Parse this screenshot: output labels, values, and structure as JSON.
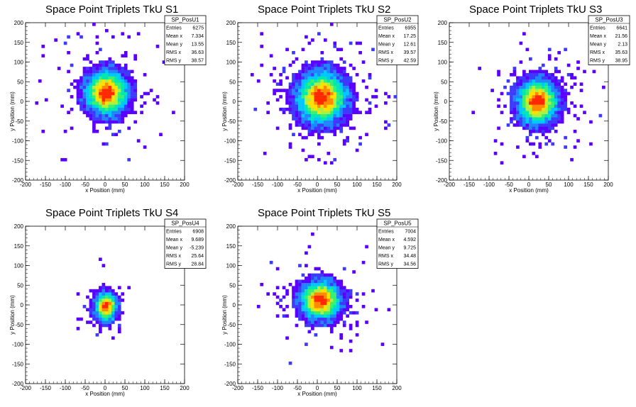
{
  "chart_data": [
    {
      "type": "heatmap",
      "title": "Space Point Triplets TkU S1",
      "xlabel": "x Position (mm)",
      "ylabel": "y Position (mm)",
      "xlim": [
        -200,
        200
      ],
      "ylim": [
        -200,
        200
      ],
      "xticks": [
        "-200",
        "-150",
        "-100",
        "-50",
        "0",
        "50",
        "100",
        "150",
        "200"
      ],
      "yticks": [
        "-200",
        "-150",
        "-100",
        "-50",
        "0",
        "50",
        "100",
        "150",
        "200"
      ],
      "stats": {
        "name": "SP_PosU1",
        "rows": [
          {
            "label": "Entries",
            "value": "6275"
          },
          {
            "label": "Mean x",
            "value": "7.334"
          },
          {
            "label": "Mean y",
            "value": "13.55"
          },
          {
            "label": "RMS x",
            "value": "36.63"
          },
          {
            "label": "RMS y",
            "value": "38.57"
          }
        ]
      },
      "peak": {
        "x": 3,
        "y": 22
      },
      "spread": {
        "x": 30,
        "y": 32
      }
    },
    {
      "type": "heatmap",
      "title": "Space Point Triplets TkU S2",
      "xlabel": "x Position (mm)",
      "ylabel": "y Position (mm)",
      "xlim": [
        -200,
        200
      ],
      "ylim": [
        -200,
        200
      ],
      "xticks": [
        "-200",
        "-150",
        "-100",
        "-50",
        "0",
        "50",
        "100",
        "150",
        "200"
      ],
      "yticks": [
        "-200",
        "-150",
        "-100",
        "-50",
        "0",
        "50",
        "100",
        "150",
        "200"
      ],
      "stats": {
        "name": "SP_PosU2",
        "rows": [
          {
            "label": "Entries",
            "value": "6955"
          },
          {
            "label": "Mean x",
            "value": "17.25"
          },
          {
            "label": "Mean y",
            "value": "12.61"
          },
          {
            "label": "RMS x",
            "value": "39.57"
          },
          {
            "label": "RMS y",
            "value": "42.59"
          }
        ]
      },
      "peak": {
        "x": 12,
        "y": 10
      },
      "spread": {
        "x": 35,
        "y": 37
      }
    },
    {
      "type": "heatmap",
      "title": "Space Point Triplets TkU S3",
      "xlabel": "x Position (mm)",
      "ylabel": "y Position (mm)",
      "xlim": [
        -200,
        200
      ],
      "ylim": [
        -200,
        200
      ],
      "xticks": [
        "-200",
        "-150",
        "-100",
        "-50",
        "0",
        "50",
        "100",
        "150",
        "200"
      ],
      "yticks": [
        "-200",
        "-150",
        "-100",
        "-50",
        "0",
        "50",
        "100",
        "150",
        "200"
      ],
      "stats": {
        "name": "SP_PosU3",
        "rows": [
          {
            "label": "Entries",
            "value": "6641"
          },
          {
            "label": "Mean x",
            "value": "21.56"
          },
          {
            "label": "Mean y",
            "value": "2.13"
          },
          {
            "label": "RMS x",
            "value": "35.63"
          },
          {
            "label": "RMS y",
            "value": "38.95"
          }
        ]
      },
      "peak": {
        "x": 22,
        "y": 0
      },
      "spread": {
        "x": 29,
        "y": 32
      }
    },
    {
      "type": "heatmap",
      "title": "Space Point Triplets TkU S4",
      "xlabel": "x Position (mm)",
      "ylabel": "y Position (mm)",
      "xlim": [
        -200,
        200
      ],
      "ylim": [
        -200,
        200
      ],
      "xticks": [
        "-200",
        "-150",
        "-100",
        "-50",
        "0",
        "50",
        "100",
        "150",
        "200"
      ],
      "yticks": [
        "-200",
        "-150",
        "-100",
        "-50",
        "0",
        "50",
        "100",
        "150",
        "200"
      ],
      "stats": {
        "name": "SP_PosU4",
        "rows": [
          {
            "label": "Entries",
            "value": "6908"
          },
          {
            "label": "Mean x",
            "value": "9.689"
          },
          {
            "label": "Mean y",
            "value": "-5.239"
          },
          {
            "label": "RMS x",
            "value": "25.64"
          },
          {
            "label": "RMS y",
            "value": "28.84"
          }
        ]
      },
      "peak": {
        "x": 2,
        "y": -5
      },
      "spread": {
        "x": 16,
        "y": 20
      }
    },
    {
      "type": "heatmap",
      "title": "Space Point Triplets TkU S5",
      "xlabel": "x Position (mm)",
      "ylabel": "y Position (mm)",
      "xlim": [
        -200,
        200
      ],
      "ylim": [
        -200,
        200
      ],
      "xticks": [
        "-200",
        "-150",
        "-100",
        "-50",
        "0",
        "50",
        "100",
        "150",
        "200"
      ],
      "yticks": [
        "-200",
        "-150",
        "-100",
        "-50",
        "0",
        "50",
        "100",
        "150",
        "200"
      ],
      "stats": {
        "name": "SP_PosU5",
        "rows": [
          {
            "label": "Entries",
            "value": "7004"
          },
          {
            "label": "Mean x",
            "value": "4.592"
          },
          {
            "label": "Mean y",
            "value": "9.725"
          },
          {
            "label": "RMS x",
            "value": "34.48"
          },
          {
            "label": "RMS y",
            "value": "34.56"
          }
        ]
      },
      "peak": {
        "x": 8,
        "y": 12
      },
      "spread": {
        "x": 28,
        "y": 28
      }
    }
  ],
  "palette": [
    "#5a00ff",
    "#3e39ff",
    "#1f86ff",
    "#00c8ff",
    "#00e8b0",
    "#3af070",
    "#aef040",
    "#ffe000",
    "#ff8a00",
    "#ff2800"
  ]
}
